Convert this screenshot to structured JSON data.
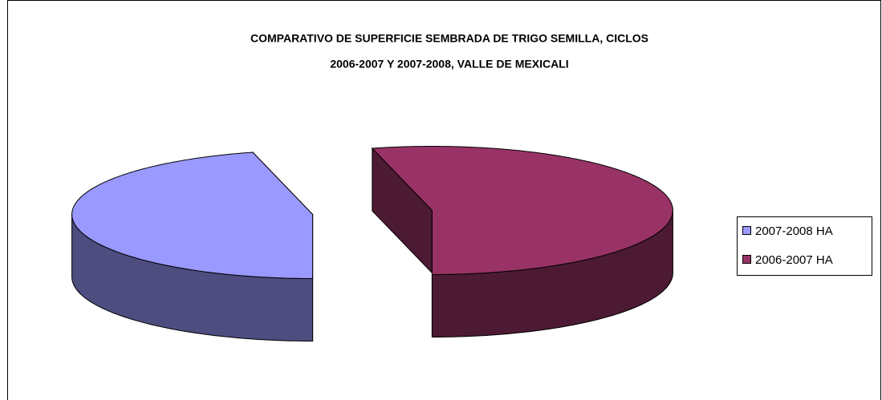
{
  "chart_data": {
    "type": "pie3d",
    "title": [
      "COMPARATIVO DE SUPERFICIE SEMBRADA DE TRIGO SEMILLA, CICLOS",
      "2006-2007 Y 2007-2008, VALLE DE MEXICALI"
    ],
    "categories": [
      "2007-2008 HA",
      "2006-2007 HA"
    ],
    "values": [
      46,
      54
    ],
    "colors": [
      "#9999ff",
      "#993366"
    ],
    "legend": "right"
  }
}
